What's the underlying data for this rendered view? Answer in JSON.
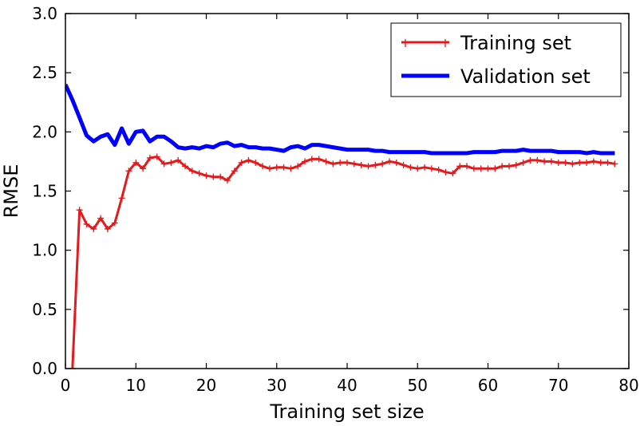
{
  "chart_data": {
    "type": "line",
    "xlabel": "Training set size",
    "ylabel": "RMSE",
    "xlim": [
      0,
      80
    ],
    "ylim": [
      0.0,
      3.0
    ],
    "x_ticks": [
      "0",
      "10",
      "20",
      "30",
      "40",
      "50",
      "60",
      "70",
      "80"
    ],
    "y_ticks": [
      "0.0",
      "0.5",
      "1.0",
      "1.5",
      "2.0",
      "2.5",
      "3.0"
    ],
    "grid": false,
    "legend_position": "top-right",
    "series": [
      {
        "name": "Training set",
        "color": "#e41a1c",
        "marker": "+",
        "x": [
          1,
          2,
          3,
          4,
          5,
          6,
          7,
          8,
          9,
          10,
          11,
          12,
          13,
          14,
          15,
          16,
          17,
          18,
          19,
          20,
          21,
          22,
          23,
          24,
          25,
          26,
          27,
          28,
          29,
          30,
          31,
          32,
          33,
          34,
          35,
          36,
          37,
          38,
          39,
          40,
          41,
          42,
          43,
          44,
          45,
          46,
          47,
          48,
          49,
          50,
          51,
          52,
          53,
          54,
          55,
          56,
          57,
          58,
          59,
          60,
          61,
          62,
          63,
          64,
          65,
          66,
          67,
          68,
          69,
          70,
          71,
          72,
          73,
          74,
          75,
          76,
          77,
          78
        ],
        "y": [
          0.0,
          1.34,
          1.22,
          1.18,
          1.27,
          1.18,
          1.23,
          1.44,
          1.67,
          1.74,
          1.69,
          1.78,
          1.79,
          1.73,
          1.74,
          1.76,
          1.71,
          1.67,
          1.65,
          1.63,
          1.62,
          1.62,
          1.59,
          1.67,
          1.74,
          1.76,
          1.74,
          1.71,
          1.69,
          1.7,
          1.7,
          1.69,
          1.71,
          1.75,
          1.77,
          1.77,
          1.75,
          1.73,
          1.74,
          1.74,
          1.73,
          1.72,
          1.71,
          1.72,
          1.73,
          1.75,
          1.74,
          1.72,
          1.7,
          1.69,
          1.7,
          1.69,
          1.68,
          1.66,
          1.65,
          1.71,
          1.71,
          1.69,
          1.69,
          1.69,
          1.69,
          1.71,
          1.71,
          1.72,
          1.74,
          1.76,
          1.76,
          1.75,
          1.75,
          1.74,
          1.74,
          1.73,
          1.74,
          1.74,
          1.75,
          1.74,
          1.74,
          1.73
        ]
      },
      {
        "name": "Validation set",
        "color": "#0000ff",
        "marker": "",
        "x": [
          0,
          1,
          2,
          3,
          4,
          5,
          6,
          7,
          8,
          9,
          10,
          11,
          12,
          13,
          14,
          15,
          16,
          17,
          18,
          19,
          20,
          21,
          22,
          23,
          24,
          25,
          26,
          27,
          28,
          29,
          30,
          31,
          32,
          33,
          34,
          35,
          36,
          37,
          38,
          39,
          40,
          41,
          42,
          43,
          44,
          45,
          46,
          47,
          48,
          49,
          50,
          51,
          52,
          53,
          54,
          55,
          56,
          57,
          58,
          59,
          60,
          61,
          62,
          63,
          64,
          65,
          66,
          67,
          68,
          69,
          70,
          71,
          72,
          73,
          74,
          75,
          76,
          77,
          78
        ],
        "y": [
          2.4,
          2.27,
          2.12,
          1.97,
          1.92,
          1.96,
          1.98,
          1.89,
          2.03,
          1.9,
          2.0,
          2.01,
          1.92,
          1.96,
          1.96,
          1.92,
          1.87,
          1.86,
          1.87,
          1.86,
          1.88,
          1.87,
          1.9,
          1.91,
          1.88,
          1.89,
          1.87,
          1.87,
          1.86,
          1.86,
          1.85,
          1.84,
          1.87,
          1.88,
          1.86,
          1.89,
          1.89,
          1.88,
          1.87,
          1.86,
          1.85,
          1.85,
          1.85,
          1.85,
          1.84,
          1.84,
          1.83,
          1.83,
          1.83,
          1.83,
          1.83,
          1.83,
          1.82,
          1.82,
          1.82,
          1.82,
          1.82,
          1.82,
          1.83,
          1.83,
          1.83,
          1.83,
          1.84,
          1.84,
          1.84,
          1.85,
          1.84,
          1.84,
          1.84,
          1.84,
          1.83,
          1.83,
          1.83,
          1.83,
          1.82,
          1.83,
          1.82,
          1.82,
          1.82
        ]
      }
    ]
  }
}
